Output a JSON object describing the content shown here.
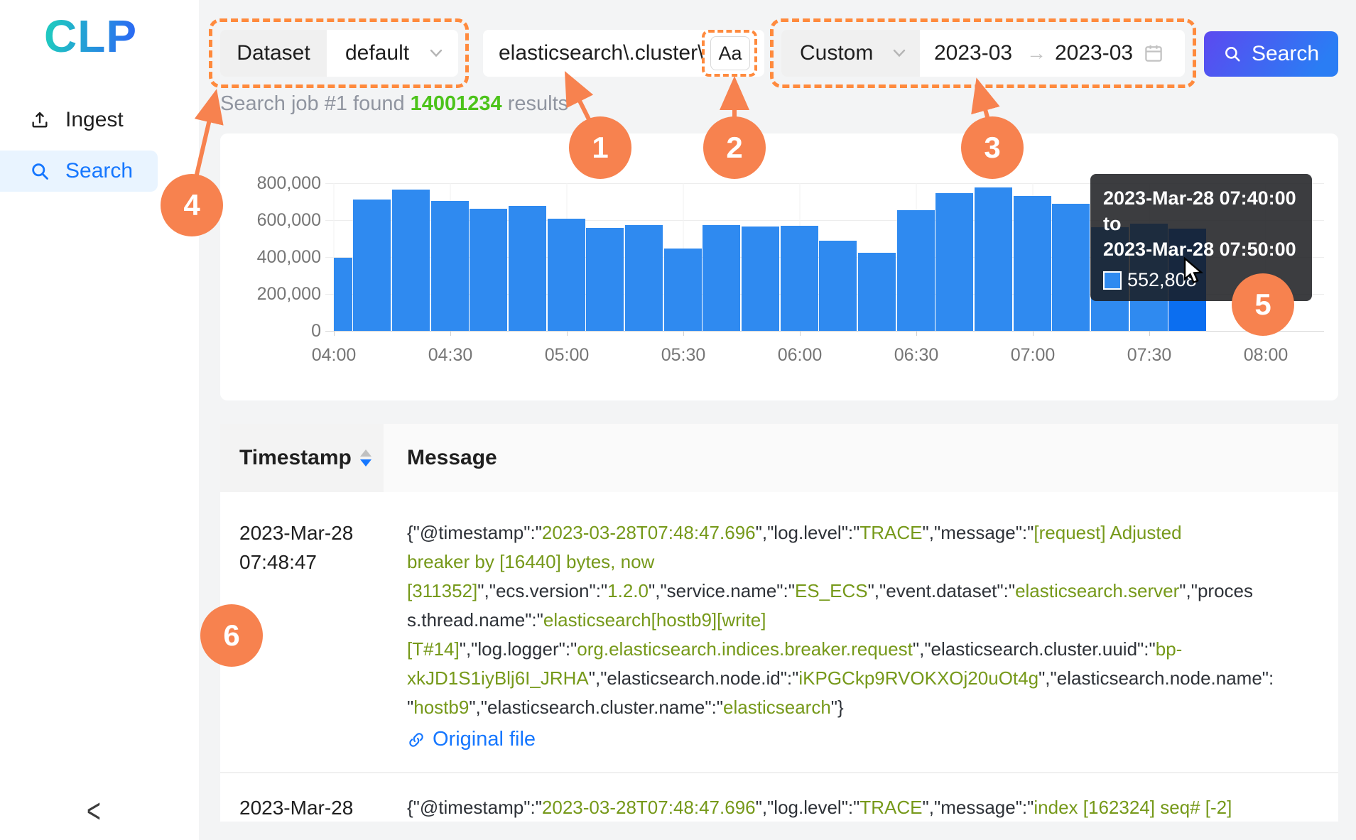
{
  "app": {
    "logo_text": "CLP"
  },
  "sidebar": {
    "items": [
      {
        "label": "Ingest"
      },
      {
        "label": "Search"
      }
    ],
    "collapse_glyph": "<"
  },
  "toolbar": {
    "dataset_label": "Dataset",
    "dataset_value": "default",
    "query_value": "elasticsearch\\.cluster\\",
    "case_sensitive_label": "Aa",
    "range_preset": "Custom",
    "range_start": "2023-03",
    "range_end": "2023-03",
    "search_label": "Search"
  },
  "status": {
    "prefix": "Search job #1 found ",
    "count": "14001234",
    "suffix": " results"
  },
  "annotations": {
    "labels": [
      "1",
      "2",
      "3",
      "4",
      "5",
      "6"
    ]
  },
  "chart_data": {
    "type": "bar",
    "title": "",
    "xlabel": "",
    "ylabel": "",
    "x": [
      "04:00",
      "04:10",
      "04:20",
      "04:30",
      "04:40",
      "04:50",
      "05:00",
      "05:10",
      "05:20",
      "05:30",
      "05:40",
      "05:50",
      "06:00",
      "06:10",
      "06:20",
      "06:30",
      "06:40",
      "06:50",
      "07:00",
      "07:10",
      "07:20",
      "07:30",
      "07:40"
    ],
    "values": [
      395000,
      712000,
      766000,
      702000,
      662000,
      678000,
      607000,
      558000,
      574000,
      447000,
      573000,
      566000,
      571000,
      490000,
      422000,
      655000,
      745000,
      778000,
      730000,
      690000,
      560000,
      580000,
      552808
    ],
    "bucket_minutes": 10,
    "ylim": [
      0,
      800000
    ],
    "grid": true,
    "y_tick_labels": [
      "800,000",
      "600,000",
      "400,000",
      "200,000",
      "0"
    ],
    "x_tick_labels": [
      "04:00",
      "04:30",
      "05:00",
      "05:30",
      "06:00",
      "06:30",
      "07:00",
      "07:30",
      "08:00"
    ],
    "hovered_index": 22,
    "bar_color": "#2f8af0",
    "hovered_bar_color": "#0b6ef0",
    "tooltip": {
      "line1": "2023-Mar-28 07:40:00 to",
      "line2": "2023-Mar-28 07:50:00",
      "value": "552,808"
    }
  },
  "table": {
    "columns": [
      "Timestamp",
      "Message"
    ],
    "rows": [
      {
        "timestamp_lines": [
          "2023-Mar-28",
          "07:48:47"
        ],
        "message_lines": [
          [
            [
              "k",
              "{\"@timestamp\":\""
            ],
            [
              "v",
              "2023-03-28T07:48:47.696"
            ],
            [
              "k",
              "\",\"log.level\":\""
            ],
            [
              "v",
              "TRACE"
            ],
            [
              "k",
              "\",\"message\":\""
            ],
            [
              "v",
              "[request] Adjusted"
            ]
          ],
          [
            [
              "v",
              "breaker by [16440] bytes, now"
            ]
          ],
          [
            [
              "v",
              "[311352]"
            ],
            [
              "k",
              "\",\"ecs.version\":\""
            ],
            [
              "v",
              "1.2.0"
            ],
            [
              "k",
              "\",\"service.name\":\""
            ],
            [
              "v",
              "ES_ECS"
            ],
            [
              "k",
              "\",\"event.dataset\":\""
            ],
            [
              "v",
              "elasticsearch.server"
            ],
            [
              "k",
              "\",\"proces"
            ]
          ],
          [
            [
              "k",
              "s.thread.name\":\""
            ],
            [
              "v",
              "elasticsearch[hostb9][write]"
            ]
          ],
          [
            [
              "v",
              "[T#14]"
            ],
            [
              "k",
              "\",\"log.logger\":\""
            ],
            [
              "v",
              "org.elasticsearch.indices.breaker.request"
            ],
            [
              "k",
              "\",\"elasticsearch.cluster.uuid\":\""
            ],
            [
              "v",
              "bp-"
            ]
          ],
          [
            [
              "v",
              "xkJD1S1iyBlj6I_JRHA"
            ],
            [
              "k",
              "\",\"elasticsearch.node.id\":\""
            ],
            [
              "v",
              "iKPGCkp9RVOKXOj20uOt4g"
            ],
            [
              "k",
              "\",\"elasticsearch.node.name\":"
            ]
          ],
          [
            [
              "k",
              "\""
            ],
            [
              "v",
              "hostb9"
            ],
            [
              "k",
              "\",\"elasticsearch.cluster.name\":\""
            ],
            [
              "v",
              "elasticsearch"
            ],
            [
              "k",
              "\"}"
            ]
          ]
        ],
        "link_label": "Original file"
      },
      {
        "timestamp_lines": [
          "2023-Mar-28"
        ],
        "message_lines": [
          [
            [
              "k",
              "{\"@timestamp\":\""
            ],
            [
              "v",
              "2023-03-28T07:48:47.696"
            ],
            [
              "k",
              "\",\"log.level\":\""
            ],
            [
              "v",
              "TRACE"
            ],
            [
              "k",
              "\",\"message\":\""
            ],
            [
              "v",
              "index [162324] seq# [-2]"
            ]
          ]
        ]
      }
    ]
  },
  "colors": {
    "annotation_orange": "#f7824f",
    "dotted_border_orange": "#ff8a3d",
    "result_count_green": "#4cc31a",
    "json_value_green": "#76991a",
    "link_blue": "#1677ff",
    "bar_blue": "#2f8af0"
  }
}
